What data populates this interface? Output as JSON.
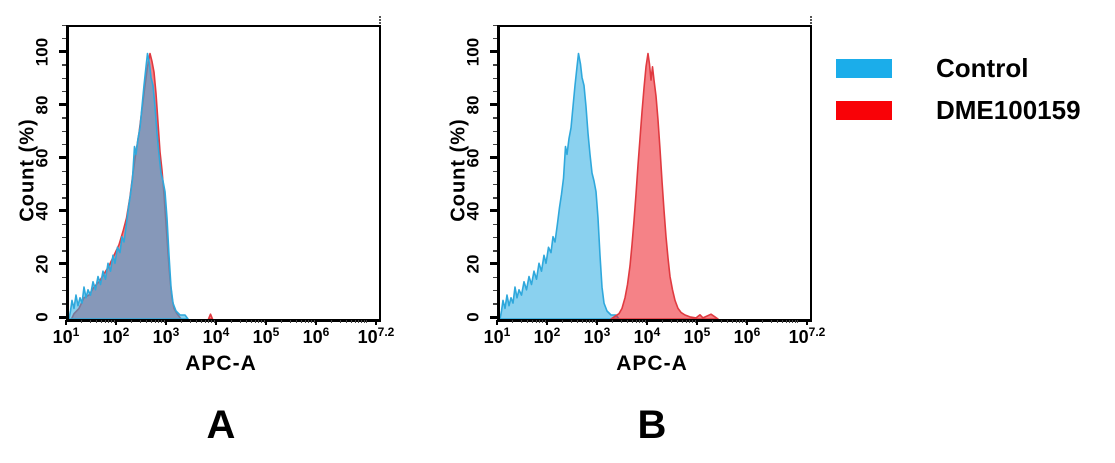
{
  "figure": {
    "background": "#ffffff",
    "panels": [
      {
        "label": "A"
      },
      {
        "label": "B"
      }
    ],
    "legend": {
      "items": [
        {
          "label": "Control",
          "color": "#1badea"
        },
        {
          "label": "DME100159",
          "color": "#f90207"
        }
      ]
    }
  },
  "chart_data": [
    {
      "type": "area",
      "panel": "A",
      "title": "",
      "xlabel": "APC-A",
      "ylabel": "Count (%)",
      "x_scale": "log10",
      "xlim_log10": [
        1,
        7.2
      ],
      "ylim": [
        0,
        110
      ],
      "y_ticks": [
        0,
        20,
        40,
        60,
        80,
        100
      ],
      "x_ticks": [
        {
          "log": 1,
          "base": "10",
          "exp": "1"
        },
        {
          "log": 2,
          "base": "10",
          "exp": "2"
        },
        {
          "log": 3,
          "base": "10",
          "exp": "3"
        },
        {
          "log": 4,
          "base": "10",
          "exp": "4"
        },
        {
          "log": 5,
          "base": "10",
          "exp": "5"
        },
        {
          "log": 6,
          "base": "10",
          "exp": "6"
        },
        {
          "log": 7.2,
          "base": "10",
          "exp": "7.2"
        }
      ],
      "grid": false,
      "legend_position": "outside-right",
      "series": [
        {
          "name": "DME100159",
          "stroke": "#e03a40",
          "fill": "rgba(237,28,36,0.55)",
          "points_logx_pct": [
            [
              1.05,
              0
            ],
            [
              1.1,
              2
            ],
            [
              1.2,
              4
            ],
            [
              1.3,
              8
            ],
            [
              1.4,
              9
            ],
            [
              1.5,
              12
            ],
            [
              1.6,
              14
            ],
            [
              1.7,
              17
            ],
            [
              1.8,
              20
            ],
            [
              1.9,
              24
            ],
            [
              2.0,
              28
            ],
            [
              2.08,
              33
            ],
            [
              2.15,
              38
            ],
            [
              2.22,
              46
            ],
            [
              2.28,
              55
            ],
            [
              2.34,
              63
            ],
            [
              2.4,
              70
            ],
            [
              2.46,
              79
            ],
            [
              2.52,
              88
            ],
            [
              2.57,
              95
            ],
            [
              2.62,
              100
            ],
            [
              2.66,
              97
            ],
            [
              2.7,
              93
            ],
            [
              2.74,
              85
            ],
            [
              2.78,
              74
            ],
            [
              2.82,
              63
            ],
            [
              2.86,
              56
            ],
            [
              2.9,
              47
            ],
            [
              2.94,
              36
            ],
            [
              2.98,
              25
            ],
            [
              3.02,
              15
            ],
            [
              3.06,
              8
            ],
            [
              3.1,
              4
            ],
            [
              3.16,
              2
            ],
            [
              3.24,
              0
            ]
          ]
        },
        {
          "name": "DME100159 outlier",
          "stroke": "#e03a40",
          "fill": "rgba(237,28,36,0.55)",
          "points_logx_pct": [
            [
              3.79,
              0
            ],
            [
              3.83,
              1.8
            ],
            [
              3.87,
              0
            ]
          ]
        },
        {
          "name": "Control",
          "stroke": "#2fa8dc",
          "fill": "rgba(41,171,226,0.55)",
          "points_logx_pct": [
            [
              1.0,
              0
            ],
            [
              1.03,
              3
            ],
            [
              1.06,
              7
            ],
            [
              1.1,
              4
            ],
            [
              1.14,
              9
            ],
            [
              1.18,
              5
            ],
            [
              1.22,
              8
            ],
            [
              1.26,
              6
            ],
            [
              1.3,
              12
            ],
            [
              1.34,
              8
            ],
            [
              1.38,
              11
            ],
            [
              1.43,
              9
            ],
            [
              1.48,
              14
            ],
            [
              1.53,
              11
            ],
            [
              1.58,
              16
            ],
            [
              1.63,
              13
            ],
            [
              1.68,
              18
            ],
            [
              1.73,
              15
            ],
            [
              1.78,
              21
            ],
            [
              1.83,
              18
            ],
            [
              1.88,
              24
            ],
            [
              1.92,
              21
            ],
            [
              1.97,
              27
            ],
            [
              2.02,
              25
            ],
            [
              2.06,
              31
            ],
            [
              2.1,
              29
            ],
            [
              2.15,
              36
            ],
            [
              2.19,
              42
            ],
            [
              2.23,
              47
            ],
            [
              2.27,
              53
            ],
            [
              2.31,
              65
            ],
            [
              2.34,
              62
            ],
            [
              2.38,
              68
            ],
            [
              2.42,
              72
            ],
            [
              2.46,
              80
            ],
            [
              2.5,
              88
            ],
            [
              2.54,
              95
            ],
            [
              2.57,
              100
            ],
            [
              2.61,
              96
            ],
            [
              2.64,
              91
            ],
            [
              2.68,
              88
            ],
            [
              2.72,
              80
            ],
            [
              2.76,
              70
            ],
            [
              2.8,
              62
            ],
            [
              2.84,
              55
            ],
            [
              2.88,
              52
            ],
            [
              2.92,
              48
            ],
            [
              2.96,
              38
            ],
            [
              3.0,
              24
            ],
            [
              3.04,
              12
            ],
            [
              3.08,
              6
            ],
            [
              3.14,
              3
            ],
            [
              3.22,
              1.5
            ],
            [
              3.32,
              1.5
            ],
            [
              3.38,
              0
            ]
          ]
        }
      ]
    },
    {
      "type": "area",
      "panel": "B",
      "title": "",
      "xlabel": "APC-A",
      "ylabel": "Count (%)",
      "x_scale": "log10",
      "xlim_log10": [
        1,
        7.2
      ],
      "ylim": [
        0,
        110
      ],
      "y_ticks": [
        0,
        20,
        40,
        60,
        80,
        100
      ],
      "x_ticks": [
        {
          "log": 1,
          "base": "10",
          "exp": "1"
        },
        {
          "log": 2,
          "base": "10",
          "exp": "2"
        },
        {
          "log": 3,
          "base": "10",
          "exp": "3"
        },
        {
          "log": 4,
          "base": "10",
          "exp": "4"
        },
        {
          "log": 5,
          "base": "10",
          "exp": "5"
        },
        {
          "log": 6,
          "base": "10",
          "exp": "6"
        },
        {
          "log": 7.2,
          "base": "10",
          "exp": "7.2"
        }
      ],
      "grid": false,
      "legend_position": "outside-right",
      "series": [
        {
          "name": "Control",
          "stroke": "#2fa8dc",
          "fill": "rgba(41,171,226,0.55)",
          "points_logx_pct": [
            [
              1.0,
              0
            ],
            [
              1.03,
              3
            ],
            [
              1.06,
              7
            ],
            [
              1.1,
              4
            ],
            [
              1.14,
              9
            ],
            [
              1.18,
              5
            ],
            [
              1.22,
              8
            ],
            [
              1.26,
              6
            ],
            [
              1.3,
              12
            ],
            [
              1.34,
              8
            ],
            [
              1.38,
              11
            ],
            [
              1.43,
              9
            ],
            [
              1.48,
              14
            ],
            [
              1.53,
              11
            ],
            [
              1.58,
              16
            ],
            [
              1.63,
              13
            ],
            [
              1.68,
              18
            ],
            [
              1.73,
              15
            ],
            [
              1.78,
              21
            ],
            [
              1.83,
              18
            ],
            [
              1.88,
              24
            ],
            [
              1.92,
              21
            ],
            [
              1.97,
              27
            ],
            [
              2.02,
              25
            ],
            [
              2.06,
              31
            ],
            [
              2.1,
              29
            ],
            [
              2.15,
              36
            ],
            [
              2.19,
              42
            ],
            [
              2.23,
              47
            ],
            [
              2.27,
              53
            ],
            [
              2.31,
              65
            ],
            [
              2.34,
              62
            ],
            [
              2.38,
              68
            ],
            [
              2.42,
              72
            ],
            [
              2.46,
              80
            ],
            [
              2.5,
              88
            ],
            [
              2.54,
              95
            ],
            [
              2.57,
              100
            ],
            [
              2.61,
              96
            ],
            [
              2.64,
              91
            ],
            [
              2.68,
              88
            ],
            [
              2.72,
              80
            ],
            [
              2.76,
              70
            ],
            [
              2.8,
              62
            ],
            [
              2.84,
              55
            ],
            [
              2.88,
              52
            ],
            [
              2.92,
              48
            ],
            [
              2.96,
              38
            ],
            [
              3.0,
              24
            ],
            [
              3.04,
              12
            ],
            [
              3.08,
              6
            ],
            [
              3.14,
              3
            ],
            [
              3.22,
              1.5
            ],
            [
              3.32,
              1.5
            ],
            [
              3.38,
              0
            ]
          ]
        },
        {
          "name": "DME100159",
          "stroke": "#e03a40",
          "fill": "rgba(237,28,36,0.55)",
          "points_logx_pct": [
            [
              3.22,
              0
            ],
            [
              3.3,
              1
            ],
            [
              3.38,
              2
            ],
            [
              3.44,
              4
            ],
            [
              3.5,
              8
            ],
            [
              3.55,
              13
            ],
            [
              3.6,
              20
            ],
            [
              3.64,
              28
            ],
            [
              3.68,
              37
            ],
            [
              3.72,
              47
            ],
            [
              3.76,
              58
            ],
            [
              3.8,
              68
            ],
            [
              3.84,
              78
            ],
            [
              3.88,
              87
            ],
            [
              3.92,
              95
            ],
            [
              3.96,
              100
            ],
            [
              3.99,
              96
            ],
            [
              4.02,
              90
            ],
            [
              4.05,
              95
            ],
            [
              4.08,
              90
            ],
            [
              4.12,
              84
            ],
            [
              4.16,
              75
            ],
            [
              4.2,
              64
            ],
            [
              4.24,
              52
            ],
            [
              4.28,
              41
            ],
            [
              4.32,
              31
            ],
            [
              4.36,
              23
            ],
            [
              4.4,
              16
            ],
            [
              4.45,
              11
            ],
            [
              4.5,
              7
            ],
            [
              4.56,
              4
            ],
            [
              4.62,
              2.5
            ],
            [
              4.7,
              1.5
            ],
            [
              4.8,
              0.8
            ],
            [
              4.92,
              0.4
            ],
            [
              5.0,
              1.6
            ],
            [
              5.06,
              0.4
            ],
            [
              5.22,
              1.8
            ],
            [
              5.3,
              0.8
            ],
            [
              5.36,
              0
            ]
          ]
        }
      ]
    }
  ]
}
